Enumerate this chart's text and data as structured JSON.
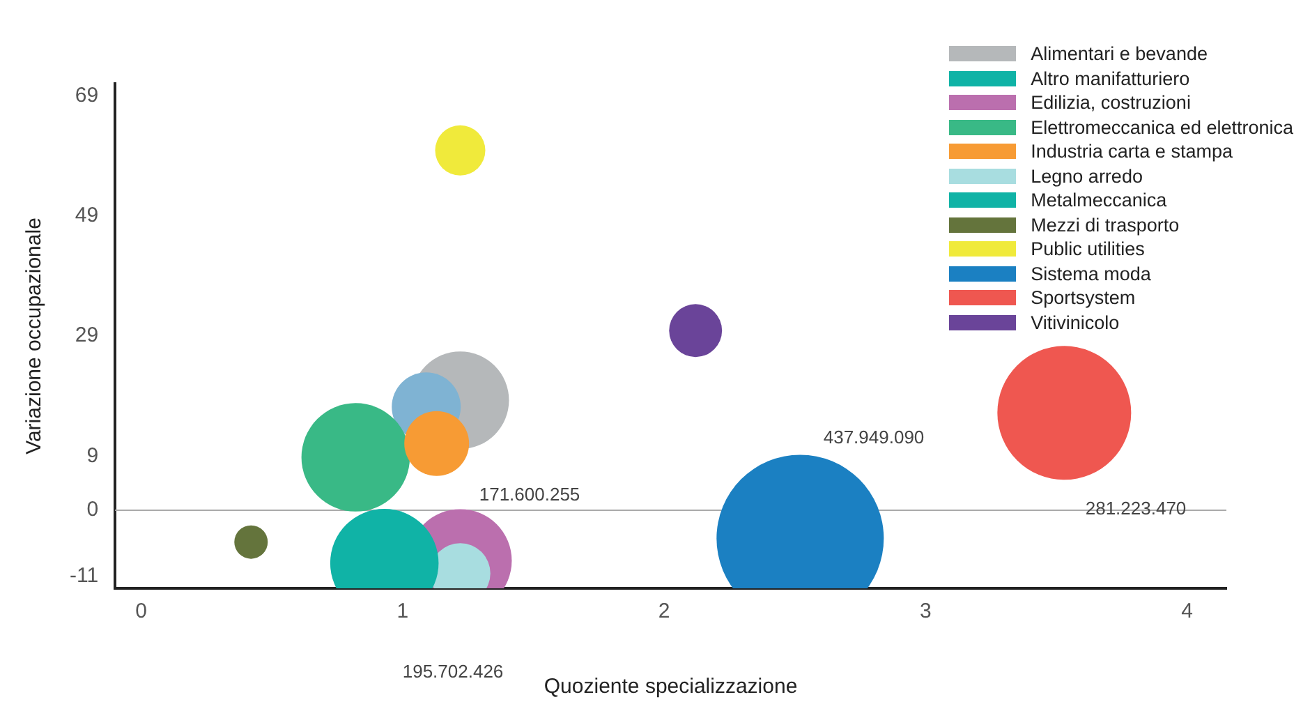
{
  "chart_data": {
    "type": "bubble",
    "xlabel": "Quoziente specializzazione",
    "ylabel": "Variazione occupazionale",
    "xlim": [
      -0.1,
      4.15
    ],
    "xticks": [
      0,
      1,
      2,
      3,
      4
    ],
    "ylim": [
      -13,
      71
    ],
    "yticks": [
      -11,
      0,
      9,
      29,
      49,
      69
    ],
    "grid": false,
    "legend": "top right",
    "series": [
      {
        "name": "Alimentari e bevande",
        "color": "#b5b8ba",
        "x": [
          1.22
        ],
        "values": [
          18.3
        ],
        "sizes": [
          0.34
        ]
      },
      {
        "color": "#7fb3d3",
        "x": [
          1.09
        ],
        "values": [
          17.2
        ],
        "sizes": [
          0.17
        ]
      },
      {
        "name": "Altro manifatturiero",
        "color": "#10b3a6",
        "x": [
          null
        ],
        "values": [
          null
        ],
        "sizes": [
          null
        ]
      },
      {
        "name": "Edilizia, costruzioni",
        "color": "#bb6fae",
        "x": [
          1.22
        ],
        "values": [
          -8.4
        ],
        "sizes": [
          0.38
        ]
      },
      {
        "name": "Elettromeccanica ed elettronica",
        "color": "#39b986",
        "x": [
          0.82
        ],
        "values": [
          8.8
        ],
        "sizes": [
          0.42
        ]
      },
      {
        "name": "Industria carta e stampa",
        "color": "#f79b34",
        "x": [
          1.13
        ],
        "values": [
          11.1
        ],
        "sizes": [
          0.15
        ]
      },
      {
        "name": "Legno arredo",
        "color": "#a8dde0",
        "x": [
          1.22
        ],
        "values": [
          -10.5
        ],
        "sizes": [
          0.13
        ]
      },
      {
        "name": "Metalmeccanica",
        "color": "#10b3a6",
        "x": [
          0.93
        ],
        "values": [
          -8.8
        ],
        "sizes": [
          0.42
        ]
      },
      {
        "name": "Mezzi di trasporto",
        "color": "#64743c",
        "x": [
          0.42
        ],
        "values": [
          -5.3
        ],
        "sizes": [
          0.04
        ]
      },
      {
        "name": "Public utilities",
        "color": "#f0ea3b",
        "x": [
          1.22
        ],
        "values": [
          59.9
        ],
        "sizes": [
          0.09
        ]
      },
      {
        "name": "Sistema moda",
        "color": "#1b80c2",
        "x": [
          2.52
        ],
        "values": [
          -4.7
        ],
        "sizes": [
          1
        ]
      },
      {
        "name": "Sportsystem",
        "color": "#ef5750",
        "x": [
          3.53
        ],
        "values": [
          16.2
        ],
        "sizes": [
          0.64
        ]
      },
      {
        "name": "Vitivinicolo",
        "color": "#6a4499",
        "x": [
          2.12
        ],
        "values": [
          29.9
        ],
        "sizes": [
          0.1
        ]
      }
    ],
    "ref_lines": [
      {
        "axis": "y",
        "value": 0,
        "color": "#aaaaaa"
      }
    ],
    "annotations": [
      "171.600.255",
      "437.949.090",
      "281.223.470",
      "195.702.426"
    ]
  }
}
